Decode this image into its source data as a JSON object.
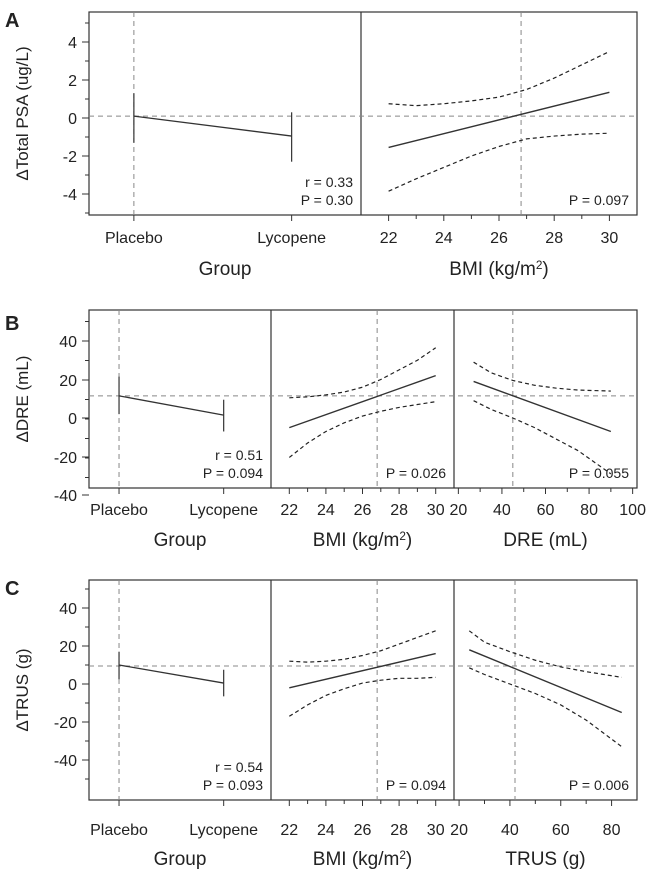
{
  "chart_data": [
    {
      "panel": "A",
      "type": "line",
      "ylabel": "ΔTotal PSA (ug/L)",
      "ylim": [
        -5.2,
        5.6
      ],
      "yticks": [
        "4",
        "2",
        "0",
        "-2",
        "-4"
      ],
      "reference_y": 0.1,
      "subplots": [
        {
          "xlabel": "Group",
          "categories": [
            "Placebo",
            "Lycopene"
          ],
          "series": [
            {
              "values": [
                0.1,
                -0.95
              ],
              "ci_low": [
                -1.3,
                -2.3
              ],
              "ci_high": [
                1.3,
                0.3
              ]
            }
          ],
          "annotation": [
            "r = 0.33",
            "P = 0.30"
          ]
        },
        {
          "xlabel": "BMI (kg/m²)",
          "xlim": [
            21,
            31
          ],
          "xticks": [
            "22",
            "24",
            "26",
            "28",
            "30"
          ],
          "x": [
            22,
            30
          ],
          "fit": [
            -1.55,
            1.35
          ],
          "ci_low_x": [
            22,
            23,
            24,
            25,
            26,
            27,
            28,
            29,
            30
          ],
          "ci_low": [
            -3.85,
            -3.2,
            -2.6,
            -2.0,
            -1.5,
            -1.1,
            -0.95,
            -0.85,
            -0.8
          ],
          "ci_high_x": [
            22,
            23,
            24,
            25,
            26,
            27,
            28,
            29,
            30
          ],
          "ci_high": [
            0.75,
            0.65,
            0.75,
            0.9,
            1.1,
            1.5,
            2.1,
            2.8,
            3.5
          ],
          "reference_x": 26.8,
          "annotation": [
            "P = 0.097"
          ]
        }
      ]
    },
    {
      "panel": "B",
      "type": "line",
      "ylabel": "ΔDRE  (mL)",
      "ylim": [
        -52,
        55
      ],
      "yticks": [
        "40",
        "20",
        "0",
        "-20",
        "-40"
      ],
      "reference_y": 11.5,
      "subplots": [
        {
          "xlabel": "Group",
          "categories": [
            "Placebo",
            "Lycopene"
          ],
          "series": [
            {
              "values": [
                11.5,
                1.5
              ],
              "ci_low": [
                2,
                -7
              ],
              "ci_high": [
                21.5,
                9.5
              ]
            }
          ],
          "annotation": [
            "r = 0.51",
            "P = 0.094"
          ]
        },
        {
          "xlabel": "BMI (kg/m²)",
          "xlim": [
            21,
            31
          ],
          "xticks": [
            "22",
            "24",
            "26",
            "28",
            "30"
          ],
          "x": [
            22,
            30
          ],
          "fit": [
            -5,
            22
          ],
          "ci_low_x": [
            22,
            23,
            24,
            25,
            26,
            27,
            28,
            29,
            30
          ],
          "ci_low": [
            -20.5,
            -13,
            -7,
            -2.5,
            1,
            3.5,
            5.5,
            7,
            8.5
          ],
          "ci_high_x": [
            22,
            23,
            24,
            25,
            26,
            27,
            28,
            29,
            30
          ],
          "ci_high": [
            10.5,
            11,
            12,
            13.5,
            16,
            20,
            25,
            30,
            36.5
          ],
          "reference_x": 26.8,
          "annotation": [
            "P = 0.026"
          ]
        },
        {
          "xlabel": "DRE (mL)",
          "xlim": [
            18,
            102
          ],
          "xticks": [
            "20",
            "40",
            "60",
            "80",
            "100"
          ],
          "x": [
            27,
            90
          ],
          "fit": [
            19,
            -7
          ],
          "ci_low_x": [
            27,
            35,
            45,
            55,
            65,
            75,
            90
          ],
          "ci_low": [
            9,
            4.5,
            0,
            -5,
            -11,
            -17,
            -29
          ],
          "ci_high_x": [
            27,
            35,
            45,
            55,
            65,
            75,
            90
          ],
          "ci_high": [
            29,
            23.5,
            19.5,
            17,
            15.5,
            14.5,
            14
          ],
          "reference_x": 45,
          "annotation": [
            "P = 0.055"
          ]
        }
      ]
    },
    {
      "panel": "C",
      "type": "line",
      "ylabel": "ΔTRUS (g)",
      "ylim": [
        -52,
        55
      ],
      "yticks": [
        "40",
        "20",
        "0",
        "-20",
        "-40"
      ],
      "reference_y": 9.5,
      "subplots": [
        {
          "xlabel": "Group",
          "categories": [
            "Placebo",
            "Lycopene"
          ],
          "series": [
            {
              "values": [
                10,
                0.5
              ],
              "ci_low": [
                2.5,
                -6.5
              ],
              "ci_high": [
                17,
                7.5
              ]
            }
          ],
          "annotation": [
            "r = 0.54",
            "P = 0.093"
          ]
        },
        {
          "xlabel": "BMI (kg/m²)",
          "xlim": [
            21,
            31
          ],
          "xticks": [
            "22",
            "24",
            "26",
            "28",
            "30"
          ],
          "x": [
            22,
            30
          ],
          "fit": [
            -2,
            16
          ],
          "ci_low_x": [
            22,
            23,
            24,
            25,
            26,
            27,
            28,
            29,
            30
          ],
          "ci_low": [
            -17,
            -11,
            -6,
            -2.5,
            0.5,
            2,
            3,
            3,
            3.5
          ],
          "ci_high_x": [
            22,
            23,
            24,
            25,
            26,
            27,
            28,
            29,
            30
          ],
          "ci_high": [
            12,
            11.5,
            12,
            13,
            15,
            17.5,
            21,
            24.5,
            28
          ],
          "reference_x": 26.8,
          "annotation": [
            "P = 0.094"
          ]
        },
        {
          "xlabel": "TRUS (g)",
          "xlim": [
            18,
            90
          ],
          "xticks": [
            "20",
            "40",
            "60",
            "80"
          ],
          "x": [
            24,
            84
          ],
          "fit": [
            18,
            -15
          ],
          "ci_low_x": [
            24,
            30,
            40,
            50,
            60,
            70,
            84
          ],
          "ci_low": [
            8.5,
            5,
            0,
            -5,
            -11,
            -19,
            -33
          ],
          "ci_high_x": [
            24,
            30,
            40,
            50,
            60,
            70,
            84
          ],
          "ci_high": [
            28,
            22,
            17,
            12.5,
            9,
            6.5,
            3.5
          ],
          "reference_x": 42,
          "annotation": [
            "P = 0.006"
          ]
        }
      ]
    }
  ]
}
